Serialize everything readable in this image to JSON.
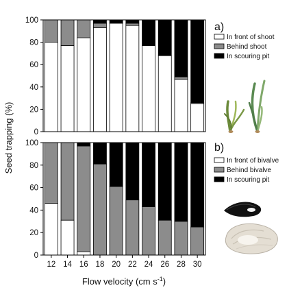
{
  "chart_data": [
    {
      "panel_label": "a)",
      "type": "bar",
      "stacked": true,
      "categories": [
        "12",
        "14",
        "16",
        "18",
        "20",
        "22",
        "24",
        "26",
        "28",
        "30"
      ],
      "series": [
        {
          "name": "In front of shoot",
          "color": "#ffffff",
          "values": [
            80,
            77,
            84,
            93,
            97,
            95,
            77,
            68,
            47,
            25
          ]
        },
        {
          "name": "Behind shoot",
          "color": "#8c8c8c",
          "values": [
            20,
            23,
            16,
            4,
            0,
            2,
            0,
            0,
            2,
            1
          ]
        },
        {
          "name": "In scouring pit",
          "color": "#000000",
          "values": [
            0,
            0,
            0,
            3,
            3,
            3,
            23,
            32,
            51,
            74
          ]
        }
      ],
      "ylim": [
        0,
        100
      ],
      "yticks": [
        "0",
        "20",
        "40",
        "60",
        "80",
        "100"
      ],
      "legend_position": "top-right",
      "illustration": "seagrass-shoots"
    },
    {
      "panel_label": "b)",
      "type": "bar",
      "stacked": true,
      "categories": [
        "12",
        "14",
        "16",
        "18",
        "20",
        "22",
        "24",
        "26",
        "28",
        "30"
      ],
      "series": [
        {
          "name": "In front of bivalve",
          "color": "#ffffff",
          "values": [
            46,
            31,
            3,
            0,
            0,
            0,
            0,
            0,
            0,
            0
          ]
        },
        {
          "name": "Behind bivalve",
          "color": "#8c8c8c",
          "values": [
            54,
            69,
            94,
            81,
            61,
            49,
            43,
            31,
            30,
            25
          ]
        },
        {
          "name": "In scouring pit",
          "color": "#000000",
          "values": [
            0,
            0,
            3,
            19,
            39,
            51,
            57,
            69,
            70,
            75
          ]
        }
      ],
      "ylim": [
        0,
        100
      ],
      "yticks": [
        "0",
        "20",
        "40",
        "60",
        "80",
        "100"
      ],
      "legend_position": "top-right",
      "illustration": "mussel-and-oyster"
    }
  ],
  "axes": {
    "ylabel": "Seed trapping (%)",
    "xlabel": "Flow velocity (cm s",
    "xlabel_superscript": "-1",
    "xlabel_close": ")"
  }
}
